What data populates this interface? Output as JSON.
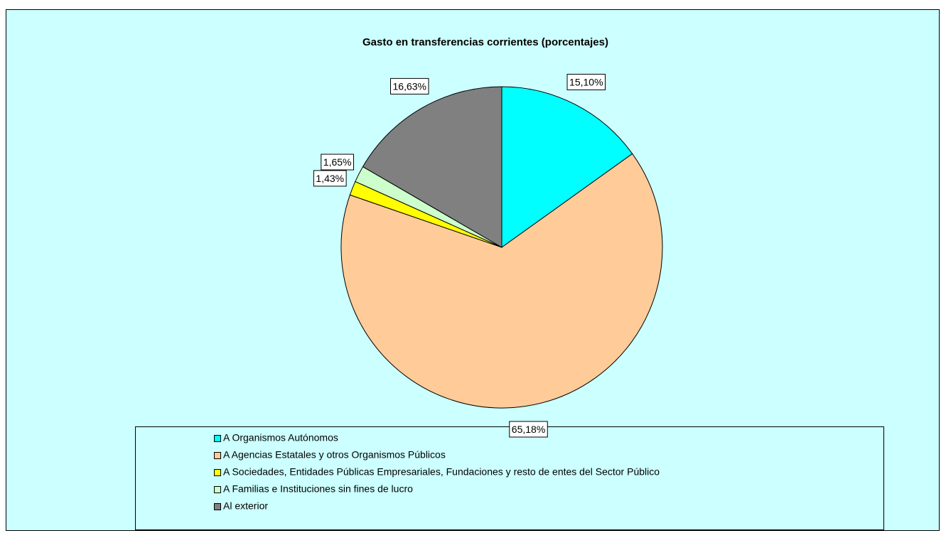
{
  "chart_data": {
    "type": "pie",
    "title": "Gasto en transferencias corrientes (porcentajes)",
    "categories": [
      "A Organismos Autónomos",
      "A Agencias Estatales y otros Organismos Públicos",
      "A Sociedades, Entidades Públicas Empresariales, Fundaciones y resto de entes del Sector Público",
      "A Familias e Instituciones sin fines de lucro",
      "Al exterior"
    ],
    "values": [
      15.1,
      65.18,
      1.43,
      1.65,
      16.63
    ],
    "value_labels": [
      "15,10%",
      "65,18%",
      "1,43%",
      "1,65%",
      "16,63%"
    ],
    "colors": [
      "#00ffff",
      "#ffcc99",
      "#ffff00",
      "#ccffcc",
      "#808080"
    ]
  }
}
